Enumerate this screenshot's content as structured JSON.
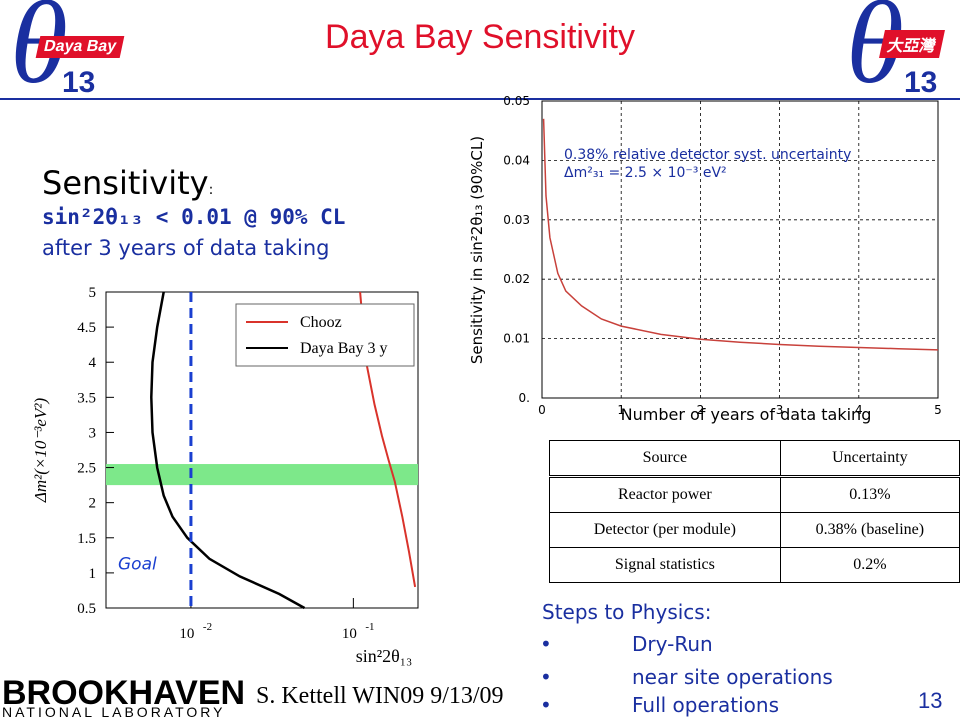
{
  "slide": {
    "title": "Daya Bay Sensitivity",
    "page_number": "13",
    "author_line": "S. Kettell WIN09 9/13/09",
    "brand_colors": {
      "red": "#e0102a",
      "blue": "#1a2fa0"
    }
  },
  "logos": {
    "left": {
      "theta": "θ",
      "badge": "Daya Bay",
      "sub": "13"
    },
    "right": {
      "theta": "θ",
      "badge": "大亞灣",
      "sub": "13"
    },
    "institution": {
      "main": "BROOKHAVEN",
      "sub": "NATIONAL LABORATORY"
    }
  },
  "sensitivity": {
    "label": "Sensitivity",
    "colon": ":",
    "line1": "sin²2θ₁₃ < 0.01 @ 90% CL",
    "line2": "after 3 years of data taking"
  },
  "chart_data": [
    {
      "type": "line",
      "ylabel": "Δm²(×10⁻³eV²)",
      "xlabel": "sin²2θ₁₃",
      "x_scale": "log",
      "xlim": [
        0.003,
        0.25
      ],
      "ylim": [
        0.5,
        5
      ],
      "x_ticks": [
        {
          "value": 0.01,
          "label": "10",
          "exp": "-2"
        },
        {
          "value": 0.1,
          "label": "10",
          "exp": "-1"
        }
      ],
      "y_ticks": [
        "0.5",
        "1",
        "1.5",
        "2",
        "2.5",
        "3",
        "3.5",
        "4",
        "4.5",
        "5"
      ],
      "series": [
        {
          "name": "Chooz",
          "color": "#d9332b",
          "x": [
            0.11,
            0.12,
            0.135,
            0.15,
            0.165,
            0.18,
            0.2,
            0.22,
            0.24
          ],
          "y": [
            5.0,
            4.0,
            3.4,
            2.95,
            2.6,
            2.3,
            1.8,
            1.3,
            0.8
          ]
        },
        {
          "name": "Daya Bay 3 y",
          "color": "#000000",
          "x": [
            0.0068,
            0.0062,
            0.0058,
            0.0057,
            0.0058,
            0.0062,
            0.0068,
            0.0077,
            0.0095,
            0.013,
            0.02,
            0.035,
            0.05
          ],
          "y": [
            5.0,
            4.5,
            4.0,
            3.5,
            3.0,
            2.5,
            2.1,
            1.8,
            1.5,
            1.2,
            0.95,
            0.7,
            0.5
          ]
        }
      ],
      "goal_line": {
        "x": 0.01,
        "label": "Goal",
        "color": "#1a3fd0"
      },
      "band": {
        "y_range": [
          2.25,
          2.55
        ],
        "color": "#7de88a"
      }
    },
    {
      "type": "line",
      "xlabel": "Number of years of data taking",
      "ylabel": "Sensitivity in sin²2θ₁₃ (90%CL)",
      "xlim": [
        0,
        5
      ],
      "ylim": [
        0,
        0.05
      ],
      "x_ticks": [
        "0",
        "1",
        "2",
        "3",
        "4",
        "5"
      ],
      "y_ticks": [
        "0.",
        "0.01",
        "0.02",
        "0.03",
        "0.04",
        "0.05"
      ],
      "grid": true,
      "annotation": [
        "0.38% relative detector syst. uncertainty",
        "Δm²₃₁ = 2.5 × 10⁻³ eV²"
      ],
      "series": [
        {
          "color": "#c8413b",
          "x": [
            0.02,
            0.05,
            0.1,
            0.2,
            0.3,
            0.5,
            0.75,
            1,
            1.5,
            2,
            2.5,
            3,
            3.5,
            4,
            4.5,
            5
          ],
          "y": [
            0.047,
            0.034,
            0.027,
            0.021,
            0.018,
            0.0155,
            0.0133,
            0.0121,
            0.0107,
            0.0099,
            0.0094,
            0.009,
            0.0087,
            0.0085,
            0.0083,
            0.0081
          ]
        }
      ]
    }
  ],
  "uncertainty_table": {
    "headers": [
      "Source",
      "Uncertainty"
    ],
    "rows": [
      [
        "Reactor power",
        "0.13%"
      ],
      [
        "Detector (per module)",
        "0.38% (baseline)"
      ],
      [
        "Signal statistics",
        "0.2%"
      ]
    ]
  },
  "steps": {
    "title": "Steps to Physics:",
    "items": [
      "Dry-Run",
      "near site operations",
      "Full operations"
    ]
  }
}
